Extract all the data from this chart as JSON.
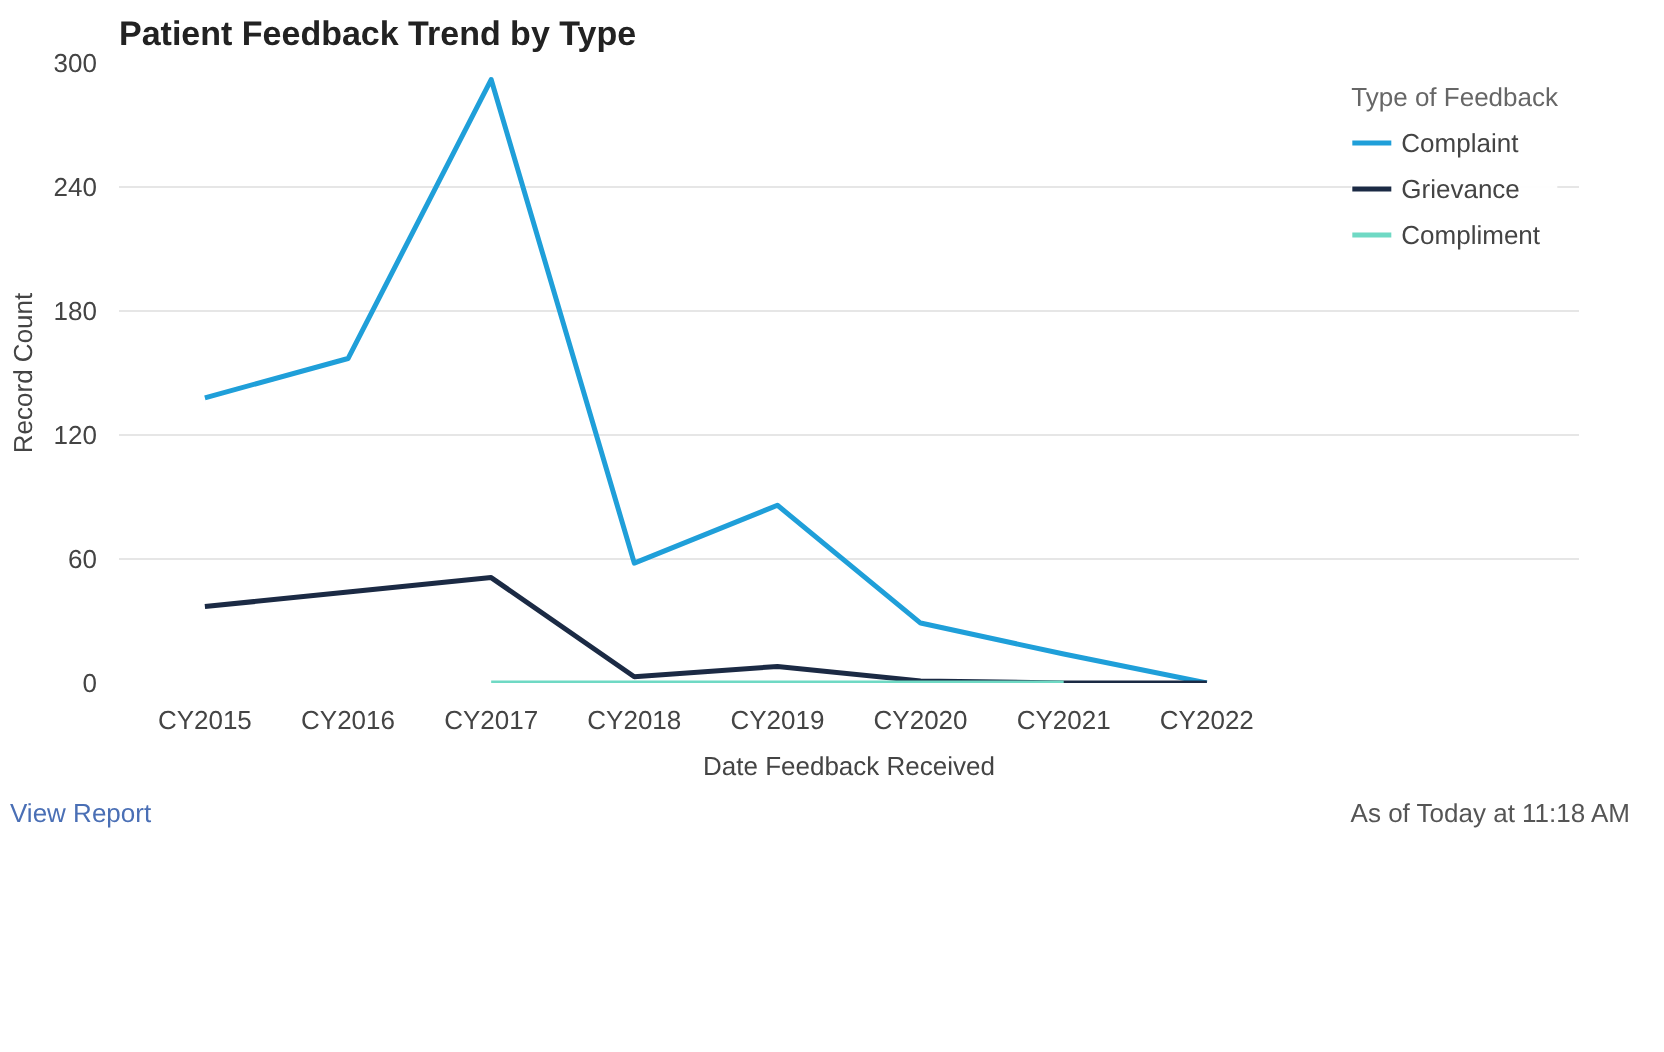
{
  "chart_data": {
    "type": "line",
    "title": "Patient Feedback Trend by Type",
    "xlabel": "Date Feedback Received",
    "ylabel": "Record Count",
    "legend_title": "Type of Feedback",
    "categories": [
      "CY2015",
      "CY2016",
      "CY2017",
      "CY2018",
      "CY2019",
      "CY2020",
      "CY2021",
      "CY2022"
    ],
    "series": [
      {
        "name": "Complaint",
        "color": "#1f9fd9",
        "values": [
          138,
          157,
          292,
          58,
          86,
          29,
          14,
          0
        ]
      },
      {
        "name": "Grievance",
        "color": "#1b2a44",
        "values": [
          37,
          44,
          51,
          3,
          8,
          1,
          0,
          0
        ]
      },
      {
        "name": "Compliment",
        "color": "#6fd9c4",
        "values": [
          null,
          null,
          0,
          0,
          0,
          0,
          0,
          null
        ]
      }
    ],
    "ylim": [
      0,
      300
    ],
    "yticks": [
      0,
      60,
      120,
      180,
      240,
      300
    ],
    "grid": "y",
    "legend": "top right",
    "marker": "none",
    "line_style": "solid",
    "annotations": [
      "View Report",
      "As of Today at 11:18 AM"
    ]
  }
}
